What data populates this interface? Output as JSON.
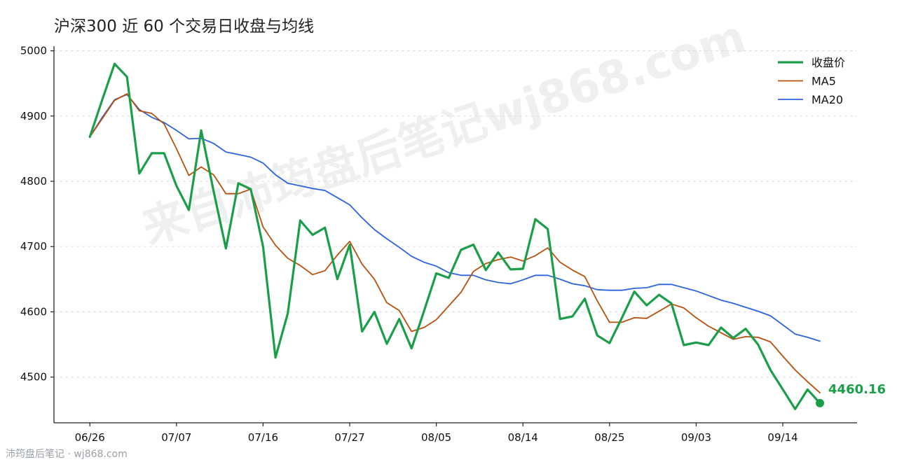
{
  "title": "沪深300 近 60 个交易日收盘与均线",
  "watermark": "来自沛筠盘后笔记wj868.com",
  "footer": "沛筠盘后笔记 · wj868.com",
  "last_value_label": "4460.16",
  "chart_data": {
    "type": "line",
    "title": "沪深300 近 60 个交易日收盘与均线",
    "xlabel": "",
    "ylabel": "",
    "x_ticks": [
      "06/26",
      "07/07",
      "07/16",
      "07/27",
      "08/05",
      "08/14",
      "08/25",
      "09/03",
      "09/14"
    ],
    "x_tick_index": [
      0,
      7,
      14,
      21,
      28,
      35,
      42,
      49,
      56
    ],
    "y_ticks": [
      4500,
      4600,
      4700,
      4800,
      4900,
      5000
    ],
    "ylim": [
      4430,
      5007
    ],
    "xlim": [
      -2.9,
      62
    ],
    "grid": "horizontal dashed",
    "legend_position": "top-right",
    "colors": {
      "close": "#1a9e48",
      "ma5": "#b8500d",
      "ma20": "#2b64dc"
    },
    "series": [
      {
        "name": "收盘价",
        "x": [
          0,
          1,
          2,
          3,
          4,
          5,
          6,
          7,
          8,
          9,
          10,
          11,
          12,
          13,
          14,
          15,
          16,
          17,
          18,
          19,
          20,
          21,
          22,
          23,
          24,
          25,
          26,
          27,
          28,
          29,
          30,
          31,
          32,
          33,
          34,
          35,
          36,
          37,
          38,
          39,
          40,
          41,
          42,
          43,
          44,
          45,
          46,
          47,
          48,
          49,
          50,
          51,
          52,
          53,
          54,
          55,
          56,
          57,
          58,
          59
        ],
        "values": [
          4868,
          4925,
          4980,
          4960,
          4812,
          4843,
          4843,
          4793,
          4756,
          4878,
          4785,
          4697,
          4797,
          4788,
          4700,
          4530,
          4598,
          4740,
          4718,
          4729,
          4650,
          4703,
          4570,
          4600,
          4551,
          4589,
          4544,
          4601,
          4659,
          4652,
          4695,
          4703,
          4664,
          4691,
          4665,
          4666,
          4742,
          4727,
          4589,
          4593,
          4620,
          4564,
          4552,
          4591,
          4631,
          4610,
          4626,
          4613,
          4549,
          4553,
          4549,
          4576,
          4560,
          4574,
          4550,
          4511,
          4481,
          4451,
          4481,
          4460.16
        ]
      },
      {
        "name": "MA5",
        "x": [
          0,
          1,
          2,
          3,
          4,
          5,
          6,
          7,
          8,
          9,
          10,
          11,
          12,
          13,
          14,
          15,
          16,
          17,
          18,
          19,
          20,
          21,
          22,
          23,
          24,
          25,
          26,
          27,
          28,
          29,
          30,
          31,
          32,
          33,
          34,
          35,
          36,
          37,
          38,
          39,
          40,
          41,
          42,
          43,
          44,
          45,
          46,
          47,
          48,
          49,
          50,
          51,
          52,
          53,
          54,
          55,
          56,
          57,
          58,
          59
        ],
        "values": [
          4868,
          4896,
          4924,
          4934,
          4908,
          4904,
          4888,
          4850,
          4809,
          4822,
          4810,
          4781,
          4781,
          4788,
          4730,
          4702,
          4682,
          4671,
          4657,
          4663,
          4687,
          4708,
          4673,
          4650,
          4614,
          4602,
          4570,
          4576,
          4588,
          4609,
          4630,
          4662,
          4674,
          4680,
          4684,
          4678,
          4686,
          4698,
          4676,
          4664,
          4654,
          4617,
          4584,
          4584,
          4591,
          4590,
          4601,
          4612,
          4606,
          4591,
          4578,
          4568,
          4558,
          4562,
          4561,
          4554,
          4532,
          4511,
          4493,
          4476
        ]
      },
      {
        "name": "MA20",
        "x": [
          0,
          1,
          2,
          3,
          4,
          5,
          6,
          7,
          8,
          9,
          10,
          11,
          12,
          13,
          14,
          15,
          16,
          17,
          18,
          19,
          20,
          21,
          22,
          23,
          24,
          25,
          26,
          27,
          28,
          29,
          30,
          31,
          32,
          33,
          34,
          35,
          36,
          37,
          38,
          39,
          40,
          41,
          42,
          43,
          44,
          45,
          46,
          47,
          48,
          49,
          50,
          51,
          52,
          53,
          54,
          55,
          56,
          57,
          58,
          59
        ],
        "values": [
          4868,
          4898,
          4925,
          4933,
          4910,
          4898,
          4890,
          4878,
          4865,
          4866,
          4858,
          4845,
          4841,
          4837,
          4828,
          4810,
          4797,
          4793,
          4789,
          4786,
          4775,
          4764,
          4744,
          4726,
          4712,
          4699,
          4685,
          4676,
          4670,
          4660,
          4656,
          4656,
          4649,
          4645,
          4643,
          4649,
          4656,
          4656,
          4650,
          4643,
          4640,
          4634,
          4633,
          4633,
          4636,
          4637,
          4642,
          4642,
          4637,
          4632,
          4625,
          4618,
          4613,
          4607,
          4601,
          4594,
          4580,
          4566,
          4561,
          4555
        ]
      }
    ]
  }
}
